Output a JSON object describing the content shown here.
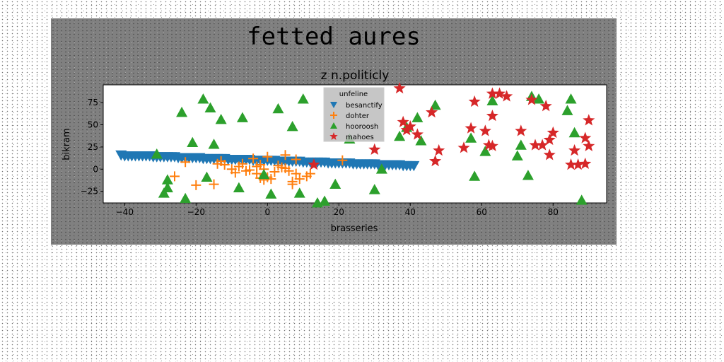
{
  "figure": {
    "suptitle": "fetted aures"
  },
  "chart_data": {
    "type": "scatter",
    "title": "z n.politicly",
    "xlabel": "brasseries",
    "ylabel": "bikram",
    "xlim": [
      -46,
      95
    ],
    "ylim": [
      -38,
      95
    ],
    "xticks": [
      -40,
      -20,
      0,
      20,
      40,
      60,
      80
    ],
    "yticks": [
      -25,
      0,
      25,
      50,
      75
    ],
    "grid": false,
    "legend": {
      "title": "unfeline",
      "placement": "upper-center"
    },
    "series": [
      {
        "name": "besanctify",
        "marker": "triangle-down",
        "color": "#1f77b4",
        "points": [
          [
            -41,
            16
          ],
          [
            -40,
            15
          ],
          [
            -39,
            15
          ],
          [
            -38,
            15
          ],
          [
            -37,
            15
          ],
          [
            -36,
            15
          ],
          [
            -35,
            15
          ],
          [
            -34,
            15
          ],
          [
            -33,
            15
          ],
          [
            -32,
            14
          ],
          [
            -31,
            14
          ],
          [
            -30,
            14
          ],
          [
            -29,
            14
          ],
          [
            -28,
            14
          ],
          [
            -27,
            14
          ],
          [
            -26,
            14
          ],
          [
            -25,
            13
          ],
          [
            -24,
            13
          ],
          [
            -23,
            13
          ],
          [
            -22,
            13
          ],
          [
            -21,
            13
          ],
          [
            -20,
            13
          ],
          [
            -19,
            13
          ],
          [
            -18,
            12
          ],
          [
            -17,
            12
          ],
          [
            -16,
            12
          ],
          [
            -15,
            12
          ],
          [
            -14,
            12
          ],
          [
            -13,
            12
          ],
          [
            -12,
            12
          ],
          [
            -11,
            11
          ],
          [
            -10,
            11
          ],
          [
            -9,
            11
          ],
          [
            -8,
            11
          ],
          [
            -7,
            11
          ],
          [
            -6,
            11
          ],
          [
            -5,
            11
          ],
          [
            -4,
            10
          ],
          [
            -3,
            10
          ],
          [
            -2,
            10
          ],
          [
            -1,
            10
          ],
          [
            0,
            10
          ],
          [
            1,
            10
          ],
          [
            2,
            10
          ],
          [
            3,
            9
          ],
          [
            4,
            9
          ],
          [
            5,
            9
          ],
          [
            6,
            9
          ],
          [
            7,
            9
          ],
          [
            8,
            9
          ],
          [
            9,
            9
          ],
          [
            10,
            8
          ],
          [
            11,
            8
          ],
          [
            12,
            8
          ],
          [
            13,
            8
          ],
          [
            14,
            8
          ],
          [
            15,
            8
          ],
          [
            16,
            8
          ],
          [
            17,
            7
          ],
          [
            18,
            7
          ],
          [
            19,
            7
          ],
          [
            20,
            7
          ],
          [
            21,
            7
          ],
          [
            22,
            7
          ],
          [
            23,
            7
          ],
          [
            24,
            6
          ],
          [
            25,
            6
          ],
          [
            26,
            6
          ],
          [
            27,
            6
          ],
          [
            28,
            6
          ],
          [
            29,
            6
          ],
          [
            30,
            6
          ],
          [
            31,
            5
          ],
          [
            32,
            5
          ],
          [
            33,
            5
          ],
          [
            34,
            5
          ],
          [
            35,
            5
          ],
          [
            36,
            5
          ],
          [
            37,
            5
          ],
          [
            38,
            4
          ],
          [
            39,
            4
          ],
          [
            40,
            4
          ],
          [
            41,
            4
          ]
        ]
      },
      {
        "name": "dohter",
        "marker": "plus",
        "color": "#ff7f0e",
        "points": [
          [
            -26,
            -8
          ],
          [
            -23,
            8
          ],
          [
            -20,
            -18
          ],
          [
            -15,
            -17
          ],
          [
            -14,
            6
          ],
          [
            -13,
            9
          ],
          [
            -12,
            5
          ],
          [
            -10,
            0
          ],
          [
            -9,
            -4
          ],
          [
            -8,
            3
          ],
          [
            -7,
            6
          ],
          [
            -6,
            -2
          ],
          [
            -5,
            -1
          ],
          [
            -4,
            12
          ],
          [
            -3,
            3
          ],
          [
            -3,
            -5
          ],
          [
            -2,
            5
          ],
          [
            -2,
            -10
          ],
          [
            -1,
            -12
          ],
          [
            -1,
            0
          ],
          [
            0,
            14
          ],
          [
            0,
            -9
          ],
          [
            1,
            -11
          ],
          [
            2,
            -3
          ],
          [
            3,
            4
          ],
          [
            4,
            2
          ],
          [
            5,
            16
          ],
          [
            5,
            1
          ],
          [
            6,
            -2
          ],
          [
            7,
            -17
          ],
          [
            7,
            -14
          ],
          [
            8,
            11
          ],
          [
            8,
            -5
          ],
          [
            9,
            -11
          ],
          [
            11,
            -8
          ],
          [
            12,
            -5
          ],
          [
            21,
            10
          ]
        ]
      },
      {
        "name": "hooroosh",
        "marker": "triangle-up",
        "color": "#2ca02c",
        "points": [
          [
            -31,
            17
          ],
          [
            -29,
            -27
          ],
          [
            -28,
            -21
          ],
          [
            -28,
            -12
          ],
          [
            -24,
            64
          ],
          [
            -23,
            -33
          ],
          [
            -21,
            30
          ],
          [
            -18,
            79
          ],
          [
            -17,
            -9
          ],
          [
            -16,
            69
          ],
          [
            -15,
            28
          ],
          [
            -13,
            56
          ],
          [
            -8,
            -21
          ],
          [
            -7,
            58
          ],
          [
            -1,
            -6
          ],
          [
            1,
            -28
          ],
          [
            3,
            68
          ],
          [
            7,
            48
          ],
          [
            9,
            -27
          ],
          [
            10,
            79
          ],
          [
            14,
            -38
          ],
          [
            16,
            -36
          ],
          [
            19,
            -17
          ],
          [
            23,
            34
          ],
          [
            30,
            -23
          ],
          [
            32,
            0
          ],
          [
            37,
            37
          ],
          [
            39,
            47
          ],
          [
            42,
            58
          ],
          [
            43,
            32
          ],
          [
            47,
            72
          ],
          [
            57,
            35
          ],
          [
            58,
            -8
          ],
          [
            61,
            20
          ],
          [
            63,
            77
          ],
          [
            70,
            15
          ],
          [
            71,
            27
          ],
          [
            73,
            -7
          ],
          [
            74,
            82
          ],
          [
            76,
            79
          ],
          [
            84,
            66
          ],
          [
            85,
            79
          ],
          [
            86,
            41
          ],
          [
            88,
            -35
          ]
        ]
      },
      {
        "name": "mahoes",
        "marker": "star",
        "color": "#d62728",
        "points": [
          [
            13,
            5
          ],
          [
            30,
            22
          ],
          [
            37,
            91
          ],
          [
            38,
            53
          ],
          [
            39,
            44
          ],
          [
            40,
            48
          ],
          [
            42,
            39
          ],
          [
            46,
            64
          ],
          [
            47,
            9
          ],
          [
            48,
            21
          ],
          [
            55,
            24
          ],
          [
            57,
            46
          ],
          [
            58,
            76
          ],
          [
            61,
            43
          ],
          [
            62,
            27
          ],
          [
            63,
            26
          ],
          [
            63,
            60
          ],
          [
            63,
            85
          ],
          [
            65,
            85
          ],
          [
            67,
            82
          ],
          [
            71,
            43
          ],
          [
            74,
            78
          ],
          [
            75,
            27
          ],
          [
            77,
            27
          ],
          [
            78,
            71
          ],
          [
            79,
            33
          ],
          [
            79,
            16
          ],
          [
            80,
            41
          ],
          [
            85,
            5
          ],
          [
            86,
            21
          ],
          [
            87,
            5
          ],
          [
            89,
            6
          ],
          [
            89,
            35
          ],
          [
            90,
            26
          ],
          [
            90,
            55
          ]
        ]
      }
    ]
  }
}
